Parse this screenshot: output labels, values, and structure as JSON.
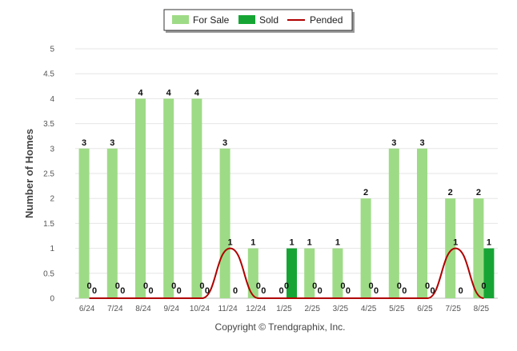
{
  "copyright": "Copyright © Trendgraphix, Inc.",
  "colors": {
    "for_sale": "#9edb86",
    "sold": "#16a534",
    "pended": "#b00000",
    "grid": "#e6e6e6",
    "axis": "#bbbbbb"
  },
  "chart_data": {
    "type": "bar",
    "title": "",
    "xlabel": "",
    "ylabel": "Number of Homes",
    "ylim": [
      0,
      5
    ],
    "yticks": [
      "0",
      "0.5",
      "1",
      "1.5",
      "2",
      "2.5",
      "3",
      "3.5",
      "4",
      "4.5",
      "5"
    ],
    "grid": true,
    "legend_position": "top-center",
    "categories": [
      "6/24",
      "7/24",
      "8/24",
      "9/24",
      "10/24",
      "11/24",
      "12/24",
      "1/25",
      "2/25",
      "3/25",
      "4/25",
      "5/25",
      "6/25",
      "7/25",
      "8/25"
    ],
    "series": [
      {
        "name": "For Sale",
        "type": "bar",
        "values": [
          3,
          3,
          4,
          4,
          4,
          3,
          1,
          0,
          1,
          1,
          2,
          3,
          3,
          2,
          2
        ]
      },
      {
        "name": "Sold",
        "type": "bar",
        "values": [
          0,
          0,
          0,
          0,
          0,
          0,
          0,
          1,
          0,
          0,
          0,
          0,
          0,
          0,
          1
        ]
      },
      {
        "name": "Pended",
        "type": "line",
        "values": [
          0,
          0,
          0,
          0,
          0,
          1,
          0,
          0,
          0,
          0,
          0,
          0,
          0,
          1,
          0
        ]
      }
    ]
  }
}
